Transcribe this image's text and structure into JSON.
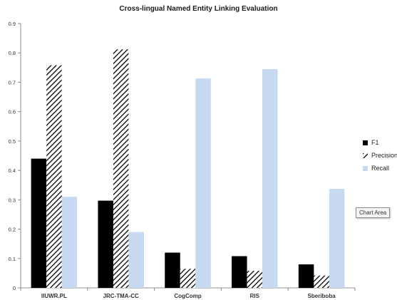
{
  "chart_data": {
    "type": "bar",
    "title": "Cross-lingual Named Entity Linking Evaluation",
    "categories": [
      "IIUWR.PL",
      "JRC-TMA-CC",
      "CogComp",
      "RIS",
      "Sberiboba"
    ],
    "series": [
      {
        "name": "F1",
        "values": [
          0.44,
          0.297,
          0.12,
          0.108,
          0.08
        ],
        "color": "#000000",
        "pattern": "solid"
      },
      {
        "name": "Precision",
        "values": [
          0.758,
          0.812,
          0.065,
          0.058,
          0.042
        ],
        "color": "#000000",
        "pattern": "diagonal-hatch"
      },
      {
        "name": "Recall",
        "values": [
          0.31,
          0.19,
          0.713,
          0.745,
          0.337
        ],
        "color": "#c6d9f0",
        "pattern": "solid"
      }
    ],
    "ylim": [
      0,
      0.9
    ],
    "yticks": [
      "0",
      "0.1",
      "0.2",
      "0.3",
      "0.4",
      "0.5",
      "0.6",
      "0.7",
      "0.8",
      "0.9"
    ],
    "grid": false,
    "legend_position": "right"
  },
  "tooltip": {
    "label": "Chart Area"
  }
}
